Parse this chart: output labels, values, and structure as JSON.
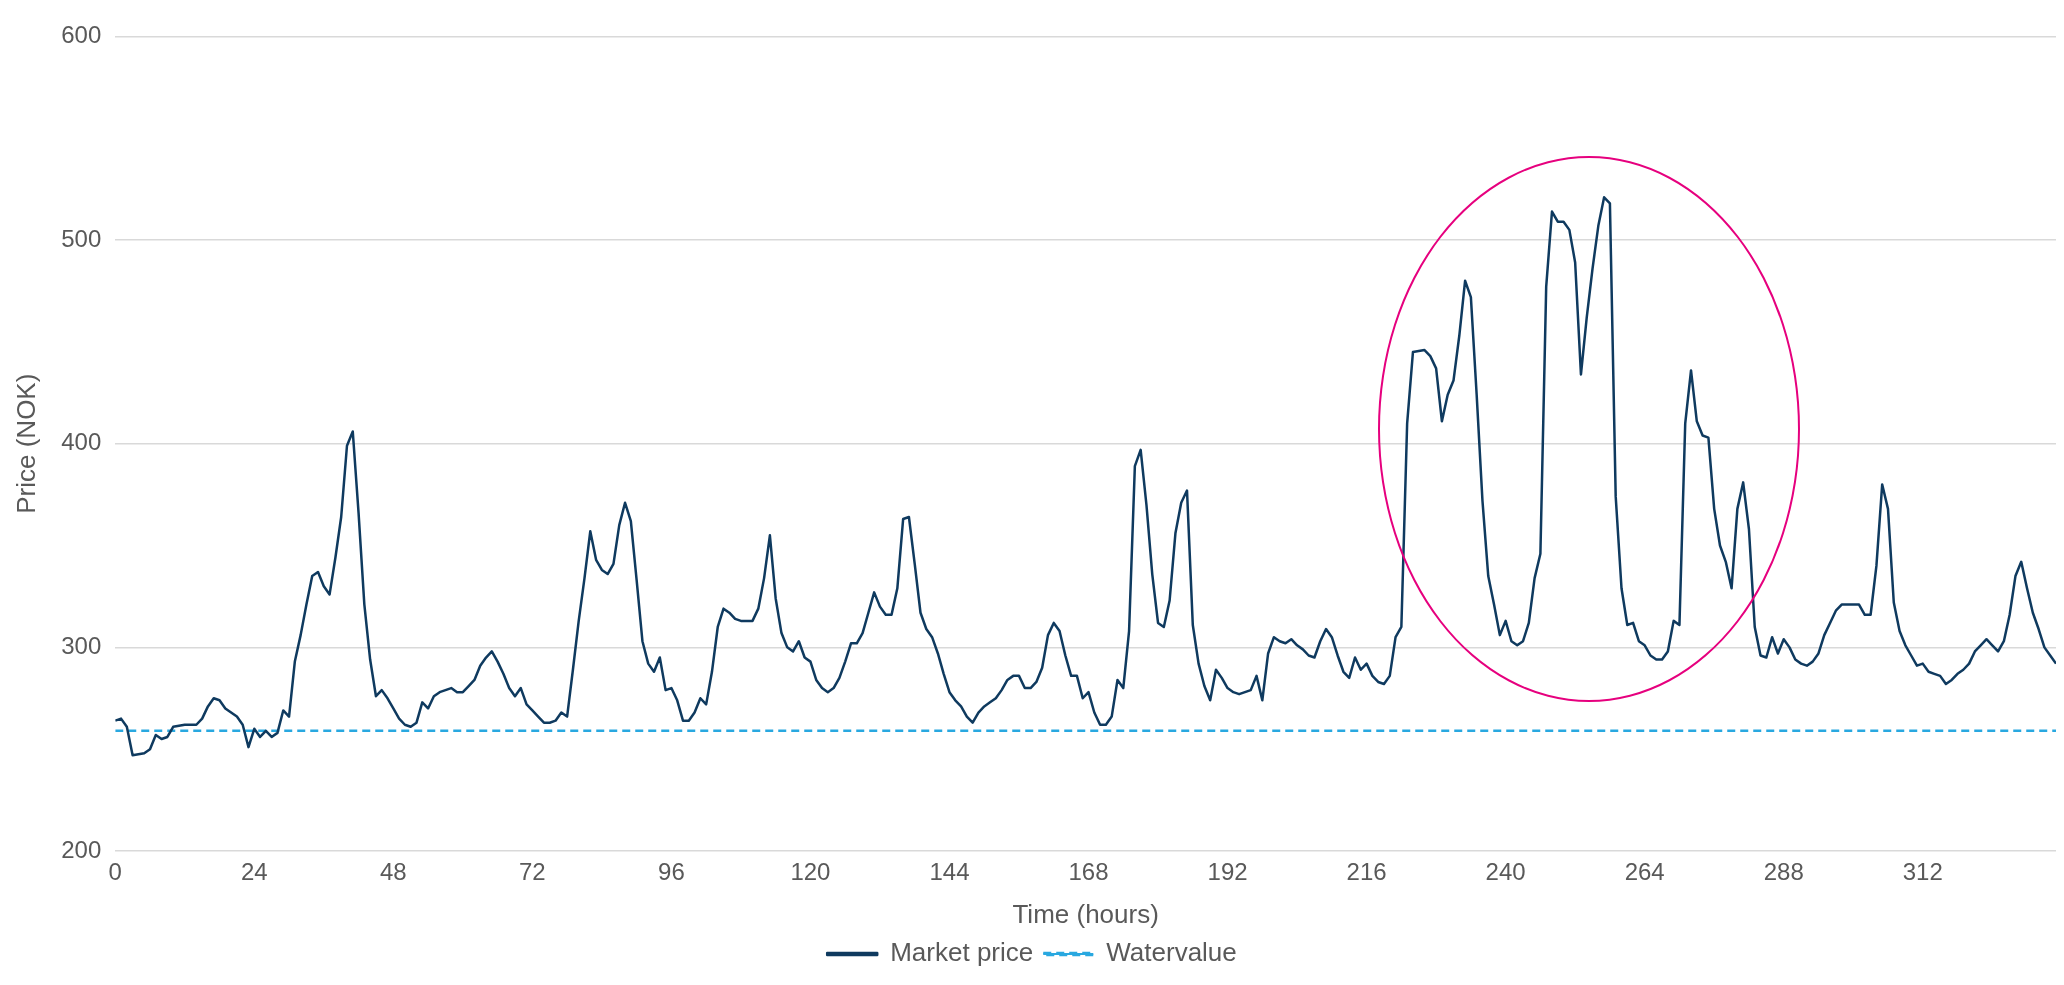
{
  "chart_data": {
    "type": "line",
    "xlabel": "Time (hours)",
    "ylabel": "Price (NOK)",
    "xlim": [
      0,
      335
    ],
    "xticks": [
      0,
      24,
      48,
      72,
      96,
      120,
      144,
      168,
      192,
      216,
      240,
      264,
      288,
      312
    ],
    "ylim": [
      200,
      600
    ],
    "yticks": [
      200,
      300,
      400,
      500,
      600
    ],
    "grid": "y",
    "legend": "bottom",
    "marker": "none",
    "series": [
      {
        "name": "Market price",
        "color": "#0f3a5f",
        "line_style": "solid",
        "x": [
          0,
          1,
          2,
          3,
          5,
          6,
          7,
          8,
          9,
          10,
          12,
          14,
          15,
          16,
          17,
          18,
          19,
          21,
          22,
          23,
          24,
          25,
          26,
          27,
          28,
          29,
          30,
          31,
          32,
          33,
          34,
          35,
          36,
          37,
          38,
          39,
          40,
          41,
          42,
          43,
          44,
          45,
          46,
          47,
          48,
          49,
          50,
          51,
          52,
          53,
          54,
          55,
          56,
          57,
          58,
          59,
          60,
          61,
          62,
          63,
          64,
          65,
          66,
          67,
          68,
          69,
          70,
          71,
          72,
          73,
          74,
          75,
          76,
          77,
          78,
          79,
          80,
          81,
          82,
          83,
          84,
          85,
          86,
          87,
          88,
          89,
          90,
          91,
          92,
          93,
          94,
          95,
          96,
          97,
          98,
          99,
          100,
          101,
          102,
          103,
          104,
          105,
          106,
          107,
          108,
          110,
          111,
          112,
          113,
          114,
          115,
          116,
          117,
          118,
          119,
          120,
          121,
          122,
          123,
          124,
          125,
          126,
          127,
          128,
          129,
          130,
          131,
          132,
          133,
          134,
          135,
          136,
          137,
          138,
          139,
          140,
          141,
          142,
          143,
          144,
          145,
          146,
          147,
          148,
          149,
          150,
          151,
          152,
          153,
          154,
          155,
          156,
          157,
          158,
          159,
          160,
          161,
          162,
          163,
          164,
          165,
          166,
          167,
          168,
          169,
          170,
          171,
          172,
          173,
          174,
          175,
          176,
          177,
          178,
          179,
          180,
          181,
          182,
          183,
          184,
          185,
          186,
          187,
          188,
          189,
          190,
          191,
          192,
          193,
          194,
          195,
          196,
          197,
          198,
          199,
          200,
          201,
          202,
          203,
          204,
          205,
          206,
          207,
          208,
          209,
          210,
          211,
          212,
          213,
          214,
          215,
          216,
          217,
          218,
          219,
          220,
          221,
          222,
          223,
          224,
          226,
          227,
          228,
          229,
          230,
          231,
          232,
          233,
          234,
          235,
          236,
          237,
          238,
          239,
          240,
          241,
          242,
          243,
          244,
          245,
          246,
          247,
          248,
          249,
          250,
          251,
          252,
          253,
          254,
          255,
          256,
          257,
          258,
          259,
          260,
          261,
          262,
          263,
          264,
          265,
          266,
          267,
          268,
          269,
          270,
          271,
          272,
          273,
          274,
          275,
          276,
          277,
          278,
          279,
          280,
          281,
          282,
          283,
          284,
          285,
          286,
          287,
          288,
          289,
          290,
          291,
          292,
          293,
          294,
          295,
          296,
          297,
          298,
          299,
          301,
          302,
          303,
          304,
          305,
          306,
          307,
          308,
          309,
          310,
          311,
          312,
          313,
          314,
          315,
          316,
          317,
          318,
          319,
          320,
          321,
          322,
          323,
          324,
          325,
          326,
          327,
          328,
          329,
          330,
          331,
          332,
          333,
          334,
          335
        ],
        "values": [
          264,
          265,
          261,
          247,
          248,
          250,
          257,
          255,
          256,
          261,
          262,
          262,
          265,
          271,
          275,
          274,
          270,
          266,
          262,
          251,
          260,
          256,
          259,
          256,
          258,
          269,
          266,
          293,
          306,
          321,
          335,
          337,
          330,
          326,
          344,
          364,
          399,
          406,
          366,
          321,
          294,
          276,
          279,
          275,
          270,
          265,
          262,
          261,
          263,
          273,
          270,
          276,
          278,
          279,
          280,
          278,
          278,
          281,
          284,
          291,
          295,
          298,
          293,
          287,
          280,
          276,
          280,
          272,
          269,
          266,
          263,
          263,
          264,
          268,
          266,
          289,
          313,
          334,
          357,
          343,
          338,
          336,
          341,
          360,
          371,
          362,
          333,
          303,
          292,
          288,
          295,
          279,
          280,
          274,
          264,
          264,
          268,
          275,
          272,
          288,
          310,
          319,
          317,
          314,
          313,
          313,
          319,
          334,
          355,
          324,
          307,
          300,
          298,
          303,
          295,
          293,
          284,
          280,
          278,
          280,
          285,
          293,
          302,
          302,
          307,
          317,
          327,
          320,
          316,
          316,
          329,
          363,
          364,
          341,
          317,
          309,
          305,
          297,
          287,
          278,
          274,
          271,
          266,
          263,
          268,
          271,
          273,
          275,
          279,
          284,
          286,
          286,
          280,
          280,
          283,
          290,
          306,
          312,
          308,
          296,
          286,
          286,
          275,
          278,
          268,
          262,
          262,
          266,
          284,
          280,
          308,
          389,
          397,
          370,
          336,
          312,
          310,
          323,
          356,
          371,
          377,
          311,
          292,
          281,
          274,
          289,
          285,
          280,
          278,
          277,
          278,
          279,
          286,
          274,
          297,
          305,
          303,
          302,
          304,
          301,
          299,
          296,
          295,
          303,
          309,
          305,
          296,
          288,
          285,
          295,
          289,
          292,
          286,
          283,
          282,
          286,
          305,
          310,
          410,
          445,
          446,
          443,
          437,
          411,
          424,
          431,
          453,
          480,
          472,
          424,
          372,
          335,
          321,
          306,
          313,
          303,
          301,
          303,
          312,
          334,
          346,
          477,
          514,
          509,
          509,
          505,
          489,
          434,
          462,
          486,
          507,
          521,
          518,
          374,
          329,
          311,
          312,
          303,
          301,
          296,
          294,
          294,
          298,
          313,
          311,
          410,
          436,
          411,
          404,
          403,
          368,
          350,
          342,
          329,
          368,
          381,
          358,
          310,
          296,
          295,
          305,
          297,
          304,
          300,
          294,
          292,
          291,
          293,
          297,
          306,
          312,
          318,
          321,
          321,
          321,
          316,
          316,
          340,
          380,
          368,
          322,
          308,
          301,
          296,
          291,
          292,
          288,
          287,
          286,
          282,
          284,
          287,
          289,
          292,
          298,
          301,
          304,
          301,
          298,
          303,
          316,
          335,
          342,
          329,
          317,
          309,
          300,
          296,
          292
        ]
      },
      {
        "name": "Watervalue",
        "color": "#29a8e0",
        "line_style": "dashed",
        "x": [
          0,
          335
        ],
        "values": [
          259,
          259
        ]
      }
    ]
  }
}
